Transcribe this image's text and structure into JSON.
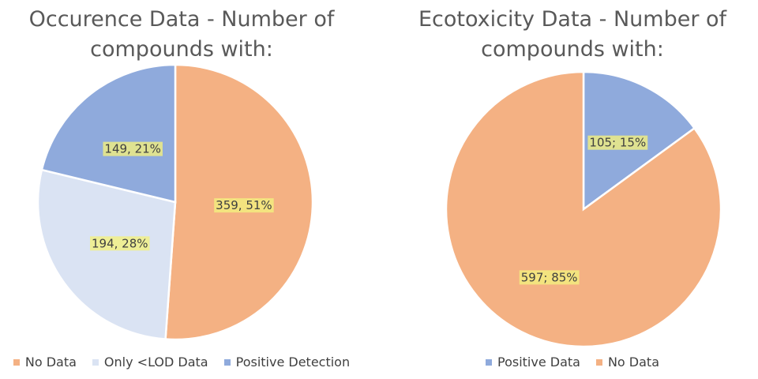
{
  "chart_data": [
    {
      "type": "pie",
      "title_lines": [
        "Occurence Data - Number of",
        "compounds with:"
      ],
      "slices": [
        {
          "label": "No Data",
          "value": 359,
          "percent": "51%",
          "color": "#F4B183",
          "data_label": "359, 51%"
        },
        {
          "label": "Only <LOD Data",
          "value": 194,
          "percent": "28%",
          "color": "#DAE3F3",
          "data_label": "194, 28%"
        },
        {
          "label": "Positive Detection",
          "value": 149,
          "percent": "21%",
          "color": "#8FAADC",
          "data_label": "149, 21%"
        }
      ],
      "legend_position": "bottom"
    },
    {
      "type": "pie",
      "title_lines": [
        "Ecotoxicity Data - Number of",
        "compounds with:"
      ],
      "slices": [
        {
          "label": "Positive Data",
          "value": 105,
          "percent": "15%",
          "color": "#8FAADC",
          "data_label": "105; 15%"
        },
        {
          "label": "No Data",
          "value": 597,
          "percent": "85%",
          "color": "#F4B183",
          "data_label": "597; 85%"
        }
      ],
      "legend_position": "bottom"
    }
  ]
}
